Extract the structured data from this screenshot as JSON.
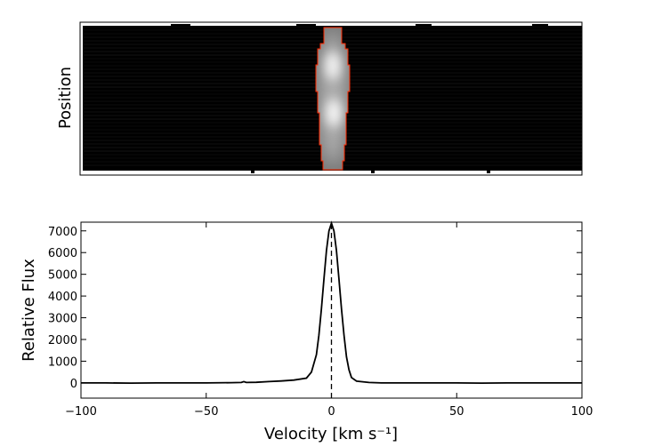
{
  "chart_data": [
    {
      "type": "heatmap",
      "ylabel": "Position",
      "xlabel": "",
      "colormap": "gray",
      "background_color": "#000000",
      "outline_color": "#ff2a00",
      "description_values": {
        "x_range": [
          -100,
          100
        ],
        "emission_velocity_center": 0,
        "emission_width_kms": 8,
        "bright_knots_relative_position": [
          0.28,
          0.62
        ]
      }
    },
    {
      "type": "line",
      "xlabel": "Velocity [km s⁻¹]",
      "ylabel": "Relative Flux",
      "xlim": [
        -100,
        100
      ],
      "ylim": [
        -700,
        7400
      ],
      "xticks": [
        -100,
        -50,
        0,
        50,
        100
      ],
      "xtick_labels": [
        "−100",
        "−50",
        "0",
        "50",
        "100"
      ],
      "yticks": [
        0,
        1000,
        2000,
        3000,
        4000,
        5000,
        6000,
        7000
      ],
      "ytick_labels": [
        "0",
        "1000",
        "2000",
        "3000",
        "4000",
        "5000",
        "6000",
        "7000"
      ],
      "reference_line_x": 0,
      "series": [
        {
          "x": [
            -100,
            -90,
            -80,
            -70,
            -60,
            -50,
            -40,
            -36,
            -35,
            -34,
            -30,
            -25,
            -20,
            -15,
            -10,
            -8,
            -6,
            -5,
            -4,
            -3,
            -2,
            -1,
            0,
            1,
            2,
            3,
            4,
            5,
            6,
            7,
            8,
            10,
            15,
            20,
            30,
            40,
            50,
            60,
            70,
            80,
            90,
            100
          ],
          "y": [
            0,
            0,
            -10,
            0,
            0,
            0,
            10,
            20,
            60,
            20,
            30,
            60,
            90,
            130,
            220,
            500,
            1300,
            2200,
            3400,
            4800,
            6100,
            7000,
            7350,
            7000,
            6100,
            4800,
            3400,
            2200,
            1200,
            600,
            250,
            80,
            20,
            0,
            0,
            0,
            0,
            -10,
            0,
            0,
            0,
            0
          ]
        }
      ]
    }
  ]
}
